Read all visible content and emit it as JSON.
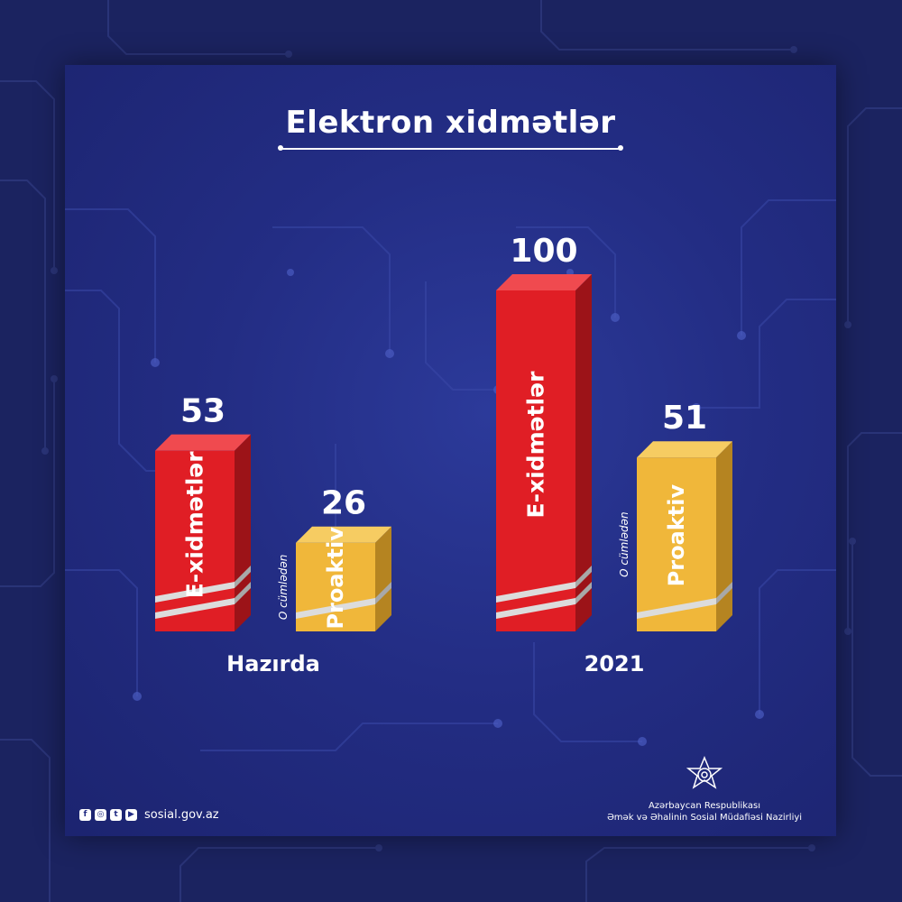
{
  "title": "Elektron xidmətlər",
  "chart_data": {
    "type": "bar",
    "title": "Elektron xidmətlər",
    "categories": [
      "Hazırda",
      "2021"
    ],
    "series": [
      {
        "name": "E-xidmətlər",
        "values": [
          53,
          100
        ],
        "color": "#e01e25"
      },
      {
        "name": "Proaktiv",
        "values": [
          26,
          51
        ],
        "color": "#f0b73a"
      }
    ],
    "annotation": "O cümlədən",
    "ylim": [
      0,
      100
    ]
  },
  "footer": {
    "website": "sosial.gov.az",
    "social_icons": [
      "facebook-icon",
      "instagram-icon",
      "twitter-icon",
      "youtube-icon"
    ],
    "org_line1": "Azərbaycan Respublikası",
    "org_line2": "Əmək və Əhalinin Sosial Müdafiəsi Nazirliyi"
  }
}
